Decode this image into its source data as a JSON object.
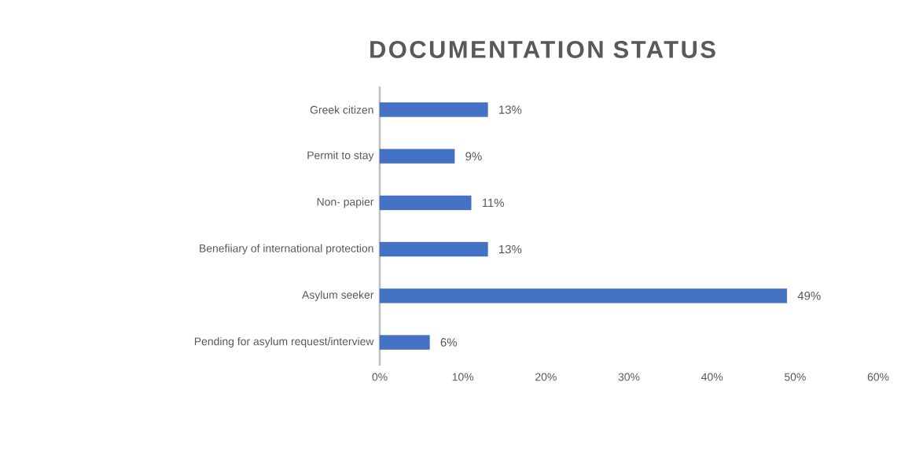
{
  "chart_data": {
    "type": "bar",
    "orientation": "horizontal",
    "title": "DOCUMENTATION STATUS",
    "categories": [
      "Greek citizen",
      "Permit to stay",
      "Non- papier",
      "Benefiiary of international protection",
      "Asylum seeker",
      "Pending for asylum request/interview"
    ],
    "values": [
      13,
      9,
      11,
      13,
      49,
      6
    ],
    "value_labels": [
      "13%",
      "9%",
      "11%",
      "13%",
      "49%",
      "6%"
    ],
    "color": "#4472c4",
    "xlim": [
      0,
      60
    ],
    "xticks": [
      {
        "value": 0,
        "label": "0%"
      },
      {
        "value": 10,
        "label": "10%"
      },
      {
        "value": 20,
        "label": "20%"
      },
      {
        "value": 30,
        "label": "30%"
      },
      {
        "value": 40,
        "label": "40%"
      },
      {
        "value": 50,
        "label": "50%"
      },
      {
        "value": 60,
        "label": "60%"
      }
    ],
    "grid": false
  }
}
